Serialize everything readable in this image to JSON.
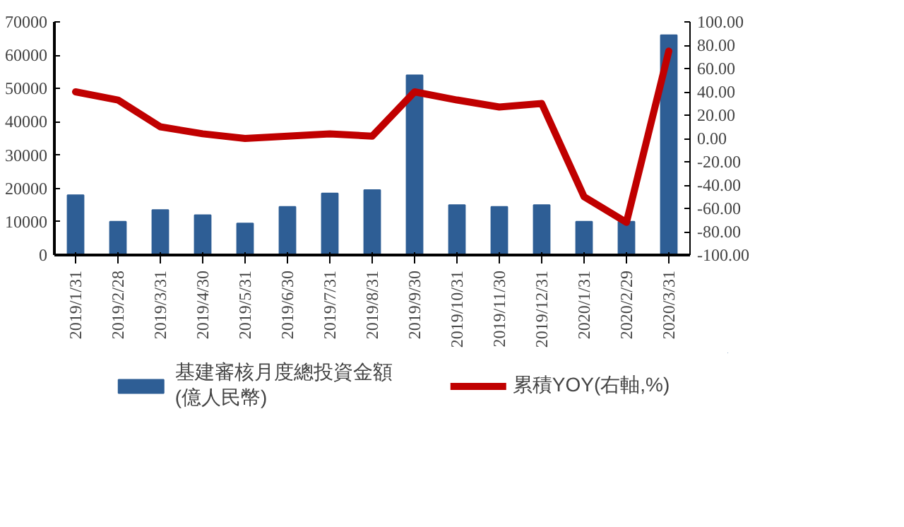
{
  "chart_data": {
    "type": "bar",
    "categories": [
      "2019/1/31",
      "2019/2/28",
      "2019/3/31",
      "2019/4/30",
      "2019/5/31",
      "2019/6/30",
      "2019/7/31",
      "2019/8/31",
      "2019/9/30",
      "2019/10/31",
      "2019/11/30",
      "2019/12/31",
      "2020/1/31",
      "2020/2/29",
      "2020/3/31"
    ],
    "series": [
      {
        "name": "基建審核月度總投資金額\n(億人民幣)",
        "color": "#2e5e95",
        "values": [
          18000,
          10000,
          13500,
          12000,
          9500,
          14500,
          18500,
          19500,
          54000,
          15000,
          14500,
          15000,
          10000,
          10000,
          66000
        ]
      },
      {
        "name": "累積YOY(右軸,%)",
        "type": "line",
        "axis": "y2",
        "color": "#c00000",
        "values": [
          40,
          33,
          10,
          4,
          0,
          2,
          4,
          2,
          40,
          33,
          27,
          30,
          -50,
          -72,
          75
        ]
      }
    ],
    "ylim": [
      0,
      70000
    ],
    "yticks": [
      0,
      10000,
      20000,
      30000,
      40000,
      50000,
      60000,
      70000
    ],
    "y2lim": [
      -100,
      100
    ],
    "y2ticks": [
      {
        "value": -100,
        "label": "-100.00"
      },
      {
        "value": -80,
        "label": "-80.00"
      },
      {
        "value": -60,
        "label": "-60.00"
      },
      {
        "value": -40,
        "label": "-40.00"
      },
      {
        "value": -20,
        "label": "-20.00"
      },
      {
        "value": 0,
        "label": "0.00"
      },
      {
        "value": 20,
        "label": "20.00"
      },
      {
        "value": 40,
        "label": "40.00"
      },
      {
        "value": 60,
        "label": "60.00"
      },
      {
        "value": 80,
        "label": "80.00"
      },
      {
        "value": 100,
        "label": "100.00"
      }
    ],
    "grid": false,
    "legend": "bottom"
  }
}
